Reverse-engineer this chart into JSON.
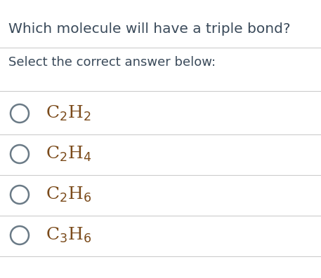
{
  "title": "Which molecule will have a triple bond?",
  "subtitle": "Select the correct answer below:",
  "options": [
    "C$_2$H$_2$",
    "C$_2$H$_4$",
    "C$_2$H$_6$",
    "C$_3$H$_6$"
  ],
  "title_fontsize": 14.5,
  "subtitle_fontsize": 13,
  "option_fontsize": 18,
  "text_color": "#3a4a5a",
  "option_text_color": "#7a4a1a",
  "circle_color": "#6a7a86",
  "line_color": "#cccccc",
  "bg_color": "#ffffff",
  "fig_width": 4.57,
  "fig_height": 3.97,
  "dpi": 100
}
